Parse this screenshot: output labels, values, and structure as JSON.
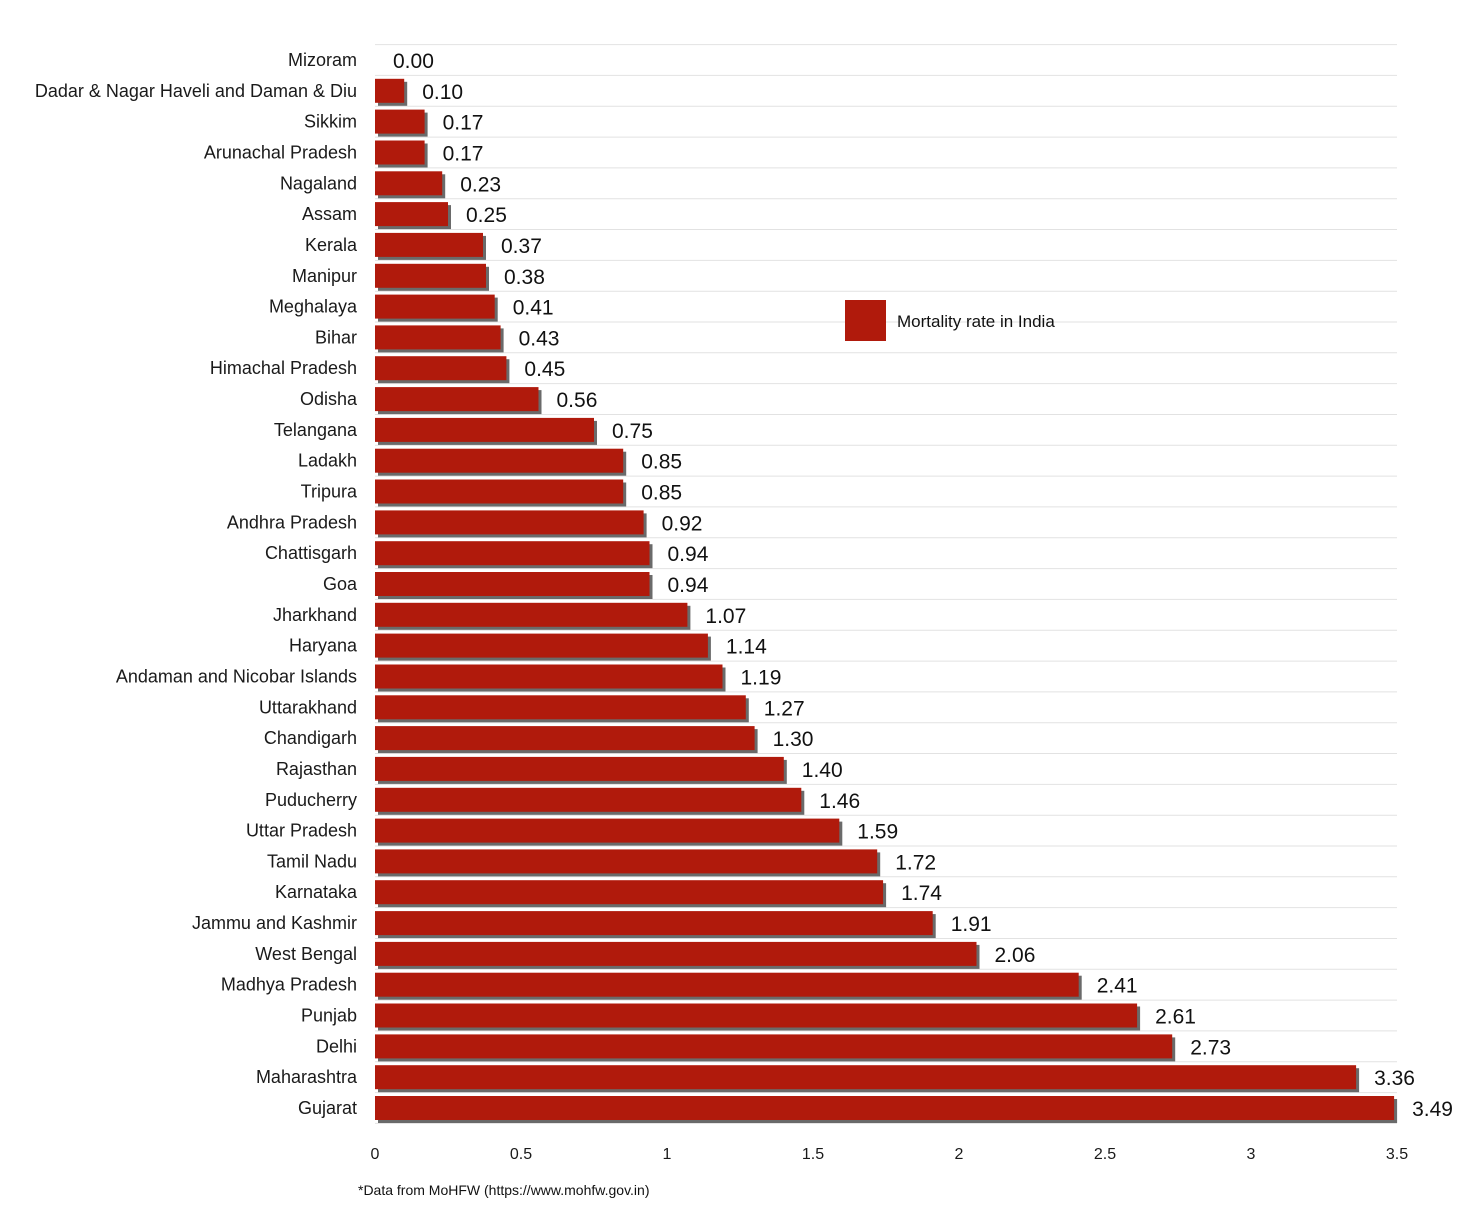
{
  "chart_data": {
    "type": "bar",
    "orientation": "horizontal",
    "categories": [
      "Mizoram",
      "Dadar & Nagar Haveli and Daman & Diu",
      "Sikkim",
      "Arunachal Pradesh",
      "Nagaland",
      "Assam",
      "Kerala",
      "Manipur",
      "Meghalaya",
      "Bihar",
      "Himachal Pradesh",
      "Odisha",
      "Telangana",
      "Ladakh",
      "Tripura",
      "Andhra Pradesh",
      "Chattisgarh",
      "Goa",
      "Jharkhand",
      "Haryana",
      "Andaman and Nicobar Islands",
      "Uttarakhand",
      "Chandigarh",
      "Rajasthan",
      "Puducherry",
      "Uttar Pradesh",
      "Tamil Nadu",
      "Karnataka",
      "Jammu and Kashmir",
      "West Bengal",
      "Madhya Pradesh",
      "Punjab",
      "Delhi",
      "Maharashtra",
      "Gujarat"
    ],
    "values": [
      0.0,
      0.1,
      0.17,
      0.17,
      0.23,
      0.25,
      0.37,
      0.38,
      0.41,
      0.43,
      0.45,
      0.56,
      0.75,
      0.85,
      0.85,
      0.92,
      0.94,
      0.94,
      1.07,
      1.14,
      1.19,
      1.27,
      1.3,
      1.4,
      1.46,
      1.59,
      1.72,
      1.74,
      1.91,
      2.06,
      2.41,
      2.61,
      2.73,
      3.36,
      3.49
    ],
    "value_labels": [
      "0.00",
      "0.10",
      "0.17",
      "0.17",
      "0.23",
      "0.25",
      "0.37",
      "0.38",
      "0.41",
      "0.43",
      "0.45",
      "0.56",
      "0.75",
      "0.85",
      "0.85",
      "0.92",
      "0.94",
      "0.94",
      "1.07",
      "1.14",
      "1.19",
      "1.27",
      "1.30",
      "1.40",
      "1.46",
      "1.59",
      "1.72",
      "1.74",
      "1.91",
      "2.06",
      "2.41",
      "2.61",
      "2.73",
      "3.36",
      "3.49"
    ],
    "series": [
      {
        "name": "Mortality rate in India",
        "color": "#b01a0c"
      }
    ],
    "xlim": [
      0,
      3.5
    ],
    "x_ticks": [
      "0",
      "0.5",
      "1",
      "1.5",
      "2",
      "2.5",
      "3",
      "3.5"
    ],
    "title": "",
    "xlabel": "",
    "ylabel": "",
    "grid": true,
    "legend_position": "center-right",
    "note": "*Data from MoHFW (https://www.mohfw.gov.in)"
  },
  "colors": {
    "bar": "#b01a0c",
    "bar_shadow": "#6a6a6a",
    "grid": "#e2e2e2",
    "text": "#1a1a1a"
  }
}
